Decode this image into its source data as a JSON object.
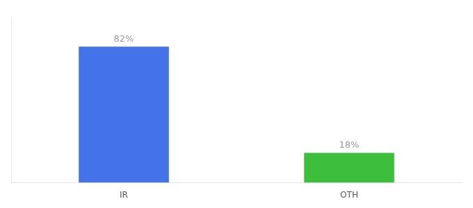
{
  "chart_data": {
    "type": "bar",
    "categories": [
      "IR",
      "OTH"
    ],
    "values": [
      82,
      18
    ],
    "value_labels": [
      "82%",
      "18%"
    ],
    "colors": [
      "#4472e8",
      "#3dbf3d"
    ],
    "ylim": [
      0,
      100
    ],
    "grid": false,
    "tick_labels": "x",
    "data_labels": true
  }
}
